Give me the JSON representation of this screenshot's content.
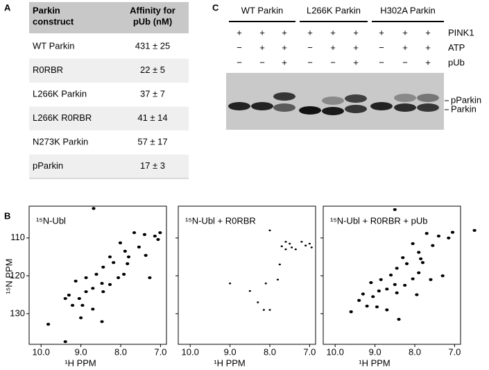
{
  "table": {
    "panel": "A",
    "header": [
      [
        "Parkin",
        "construct"
      ],
      [
        "Affinity for",
        "pUb (nM)"
      ]
    ],
    "rows": [
      [
        "WT Parkin",
        "431 ± 25"
      ],
      [
        "R0RBR",
        "22 ± 5"
      ],
      [
        "L266K Parkin",
        "37 ± 7"
      ],
      [
        "L266K R0RBR",
        "41 ± 14"
      ],
      [
        "N273K Parkin",
        "57 ± 17"
      ],
      [
        "pParkin",
        "17 ± 3"
      ]
    ]
  },
  "gel": {
    "panel": "C",
    "groups": [
      {
        "name": "WT Parkin",
        "color": "#000000"
      },
      {
        "name": "L266K Parkin",
        "color": "#000000"
      },
      {
        "name": "H302A Parkin",
        "color": "#666666"
      }
    ],
    "rows": [
      {
        "name": "PINK1",
        "signs": [
          "+",
          "+",
          "+",
          "+",
          "+",
          "+",
          "+",
          "+",
          "+"
        ]
      },
      {
        "name": "ATP",
        "signs": [
          "−",
          "+",
          "+",
          "−",
          "+",
          "+",
          "−",
          "+",
          "+"
        ]
      },
      {
        "name": "pUb",
        "signs": [
          "−",
          "−",
          "+",
          "−",
          "−",
          "+",
          "−",
          "−",
          "+"
        ]
      }
    ],
    "band_labels": [
      "pParkin",
      "Parkin"
    ]
  },
  "nmr": {
    "panel": "B",
    "xlabel": "¹H PPM",
    "ylabel": "¹⁵N PPM",
    "xlim": [
      10.3,
      6.85
    ],
    "ylim": [
      101.6,
      138.1
    ],
    "xticks": [
      {
        "value": 10,
        "label": "10.0"
      },
      {
        "value": 9,
        "label": "9.0"
      },
      {
        "value": 8,
        "label": "8.0"
      },
      {
        "value": 7,
        "label": "7.0"
      }
    ],
    "yticks": [
      110,
      120,
      130
    ],
    "spectra": [
      {
        "title": "¹⁵N-Ubl",
        "peaks": [
          [
            8.68,
            102.2
          ],
          [
            7.01,
            108.6
          ],
          [
            7.66,
            108.6
          ],
          [
            7.4,
            109.1
          ],
          [
            7.14,
            109.5
          ],
          [
            7.54,
            112.4
          ],
          [
            8.01,
            111.3
          ],
          [
            7.89,
            113.5
          ],
          [
            8.27,
            115
          ],
          [
            8.44,
            117.7
          ],
          [
            8.61,
            119.6
          ],
          [
            8.87,
            120.5
          ],
          [
            9.13,
            121.4
          ],
          [
            9.3,
            125.1
          ],
          [
            9.39,
            126
          ],
          [
            9.21,
            127.8
          ],
          [
            9.04,
            126
          ],
          [
            8.87,
            124.2
          ],
          [
            8.7,
            123.3
          ],
          [
            8.44,
            124.2
          ],
          [
            8.27,
            122.3
          ],
          [
            8.06,
            120.5
          ],
          [
            7.92,
            119.6
          ],
          [
            7.83,
            116.8
          ],
          [
            8.18,
            116.5
          ],
          [
            8.47,
            122
          ],
          [
            8.96,
            127.8
          ],
          [
            8.7,
            128.8
          ],
          [
            8.47,
            132.1
          ],
          [
            9,
            131.1
          ],
          [
            9.82,
            132.8
          ],
          [
            9.39,
            137.4
          ],
          [
            7.8,
            115
          ],
          [
            7.27,
            120.5
          ],
          [
            7.06,
            110.4
          ],
          [
            7.37,
            114.6
          ]
        ]
      },
      {
        "title": "¹⁵N-Ubl + R0RBR",
        "peaks": [
          [
            7.6,
            111
          ],
          [
            7.5,
            111.5
          ],
          [
            7.45,
            112.5
          ],
          [
            7.2,
            111
          ],
          [
            7.1,
            112
          ],
          [
            7,
            111.5
          ],
          [
            6.95,
            112.5
          ],
          [
            7.35,
            113
          ],
          [
            7.6,
            113
          ],
          [
            7.7,
            112.2
          ],
          [
            8.0,
            108
          ],
          [
            8.1,
            122
          ],
          [
            8.0,
            129
          ],
          [
            8.15,
            129
          ],
          [
            8.5,
            124
          ],
          [
            9.0,
            122
          ],
          [
            8.3,
            127
          ],
          [
            7.75,
            117
          ],
          [
            7.8,
            121
          ]
        ]
      },
      {
        "title": "¹⁵N-Ubl + R0RBR + pUb",
        "peaks": [
          [
            8.5,
            102.5
          ],
          [
            7.05,
            108.5
          ],
          [
            7.7,
            108.8
          ],
          [
            7.4,
            109.5
          ],
          [
            7.15,
            110
          ],
          [
            7.55,
            112
          ],
          [
            8.05,
            111.5
          ],
          [
            7.9,
            113.8
          ],
          [
            8.3,
            115.2
          ],
          [
            8.45,
            118
          ],
          [
            8.6,
            119.8
          ],
          [
            8.85,
            121
          ],
          [
            9.1,
            121.8
          ],
          [
            9.3,
            124.8
          ],
          [
            9.4,
            126.5
          ],
          [
            9.2,
            128
          ],
          [
            9.05,
            125.5
          ],
          [
            8.9,
            124
          ],
          [
            8.7,
            123.5
          ],
          [
            8.45,
            124.5
          ],
          [
            8.25,
            122.5
          ],
          [
            8.05,
            120.8
          ],
          [
            7.9,
            119.2
          ],
          [
            7.8,
            116.5
          ],
          [
            8.2,
            116.8
          ],
          [
            8.5,
            122.3
          ],
          [
            8.95,
            128.2
          ],
          [
            8.7,
            129
          ],
          [
            8.4,
            131.5
          ],
          [
            9.6,
            129.5
          ],
          [
            7.85,
            115.5
          ],
          [
            7.3,
            120
          ],
          [
            7.6,
            121
          ],
          [
            7.95,
            125
          ],
          [
            6.5,
            108
          ]
        ]
      }
    ]
  }
}
